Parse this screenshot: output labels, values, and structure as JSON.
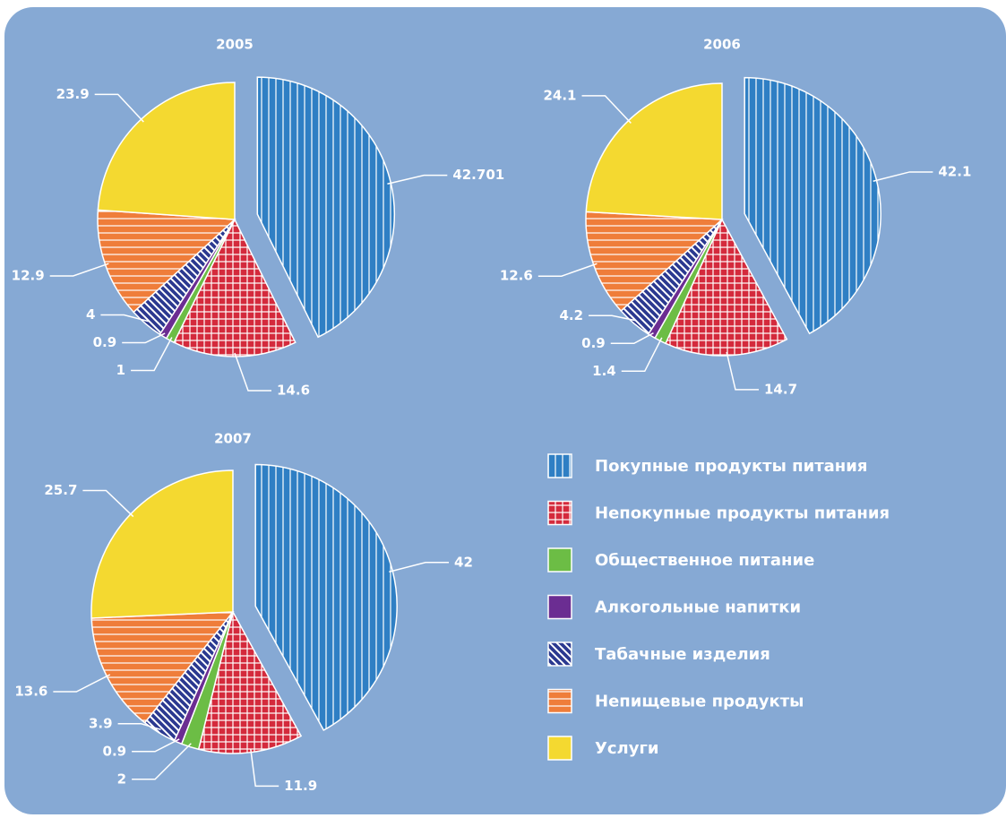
{
  "chart_data": [
    {
      "type": "pie",
      "title": "2005",
      "values": [
        42.701,
        14.6,
        1,
        0.9,
        4,
        12.9,
        23.9
      ]
    },
    {
      "type": "pie",
      "title": "2006",
      "values": [
        42.1,
        14.7,
        1.4,
        0.9,
        4.2,
        12.6,
        24.1
      ]
    },
    {
      "type": "pie",
      "title": "2007",
      "values": [
        42,
        11.9,
        2,
        0.9,
        3.9,
        13.6,
        25.7
      ]
    }
  ],
  "legend": {
    "categories": [
      "Покупные продукты питания",
      "Непокупные продукты питания",
      "Общественное питание",
      "Алкогольные напитки",
      "Табачные изделия",
      "Непищевые продукты",
      "Услуги"
    ],
    "colors": [
      "#2f7fc4",
      "#d42a3c",
      "#6cbd45",
      "#6b2d92",
      "#2b3990",
      "#ef7d3a",
      "#f4d930"
    ],
    "patterns": [
      "vertical",
      "grid",
      "none",
      "none",
      "diagonal",
      "horizontal",
      "none"
    ]
  }
}
